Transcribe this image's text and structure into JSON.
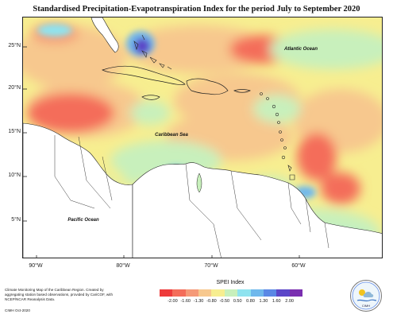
{
  "title": "Standardised Precipitation-Evapotranspiration Index for the period July to September 2020",
  "lat_ticks": [
    "25°N",
    "20°N",
    "15°N",
    "10°N",
    "5°N"
  ],
  "lon_ticks": [
    "90°W",
    "80°W",
    "70°W",
    "60°W"
  ],
  "labels": {
    "atlantic": "Atlantic Ocean",
    "caribbean": "Caribbean Sea",
    "pacific": "Pacific Ocean"
  },
  "credits": "Climate Monitoring Map of the Caribbean Region. Created by aggregating station based observations, provided by CariCOF, with NCEP/NCAR Reanalysis Data.",
  "footer_date": "CIMH Oct-2020",
  "legend": {
    "title": "SPEI Index",
    "labels": [
      "-2.00",
      "-1.60",
      "-1.30",
      "-0.80",
      "-0.50",
      "0.50",
      "0.80",
      "1.30",
      "1.60",
      "2.00"
    ],
    "colors": [
      "#ee3b3b",
      "#f46d5a",
      "#f59a78",
      "#f7c88e",
      "#f7ee90",
      "#c8f0bc",
      "#8fe3ef",
      "#6fb8ec",
      "#5a88e5",
      "#5b46c8",
      "#7a2fb0"
    ]
  },
  "logo_text": "CIMH"
}
